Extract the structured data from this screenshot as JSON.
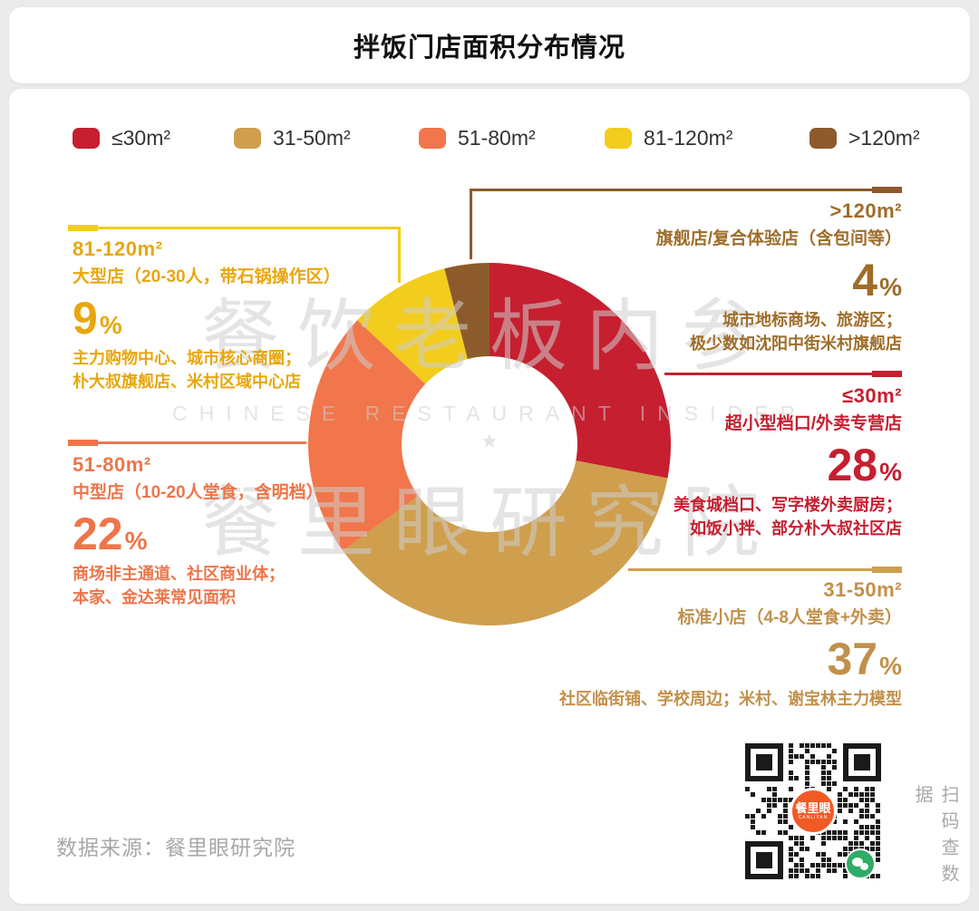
{
  "title": "拌饭门店面积分布情况",
  "colors": {
    "red": "#c51f30",
    "gold": "#cf9f4e",
    "orange": "#f1764b",
    "yellow": "#f2cd1d",
    "brown": "#8d5b2b",
    "text_red": "#c51f30",
    "text_gold": "#c2904a",
    "text_orange": "#ee7549",
    "text_yellow": "#e9a60d",
    "text_brown": "#9e6d29",
    "qr_brand_bg": "#f15a24",
    "wechat_green": "#2fac66"
  },
  "legend": [
    {
      "label": "≤30m²",
      "color": "#c51f30"
    },
    {
      "label": "31-50m²",
      "color": "#cf9f4e"
    },
    {
      "label": "51-80m²",
      "color": "#f1764b"
    },
    {
      "label": "81-120m²",
      "color": "#f2cd1d"
    },
    {
      "label": ">120m²",
      "color": "#8d5b2b"
    }
  ],
  "chart_data": {
    "type": "pie",
    "donut": true,
    "title": "拌饭门店面积分布情况",
    "categories": [
      "≤30m²",
      "31-50m²",
      "51-80m²",
      "81-120m²",
      ">120m²"
    ],
    "values": [
      28,
      37,
      22,
      9,
      4
    ],
    "unit": "%",
    "colors": [
      "#c51f30",
      "#cf9f4e",
      "#f1764b",
      "#f2cd1d",
      "#8d5b2b"
    ],
    "start_angle_deg": 0,
    "direction": "clockwise",
    "inner_radius_ratio": 0.485,
    "legend_position": "top"
  },
  "annotations": {
    "y81_120": {
      "range": "81-120m²",
      "type": "大型店（20-30人，带石锅操作区）",
      "value": "9",
      "unit": "%",
      "desc1": "主力购物中心、城市核心商圈；",
      "desc2": "朴大叔旗舰店、米村区域中心店"
    },
    "o51_80": {
      "range": "51-80m²",
      "type": "中型店（10-20人堂食，含明档）",
      "value": "22",
      "unit": "%",
      "desc1": "商场非主通道、社区商业体；",
      "desc2": "本家、金达莱常见面积"
    },
    "b120plus": {
      "range": ">120m²",
      "type": "旗舰店/复合体验店（含包间等）",
      "value": "4",
      "unit": "%",
      "desc1": "城市地标商场、旅游区；",
      "desc2": "极少数如沈阳中街米村旗舰店"
    },
    "r30less": {
      "range": "≤30m²",
      "type": "超小型档口/外卖专营店",
      "value": "28",
      "unit": "%",
      "desc1": "美食城档口、写字楼外卖厨房；",
      "desc2": "如饭小拌、部分朴大叔社区店"
    },
    "g31_50": {
      "range": "31-50m²",
      "type": "标准小店（4-8人堂食+外卖）",
      "value": "37",
      "unit": "%",
      "desc1": "社区临街铺、学校周边；米村、谢宝林主力模型",
      "desc2": ""
    }
  },
  "watermark": {
    "line1": "餐饮老板内参",
    "line2": "CHINESE RESTAURANT INSIDER",
    "star": "★",
    "line3": "餐里眼研究院"
  },
  "source": "数据来源：餐里眼研究院",
  "qr": {
    "brand": "餐里眼",
    "brand_sub": "CANLIYAN",
    "caption": "扫码查数据"
  }
}
